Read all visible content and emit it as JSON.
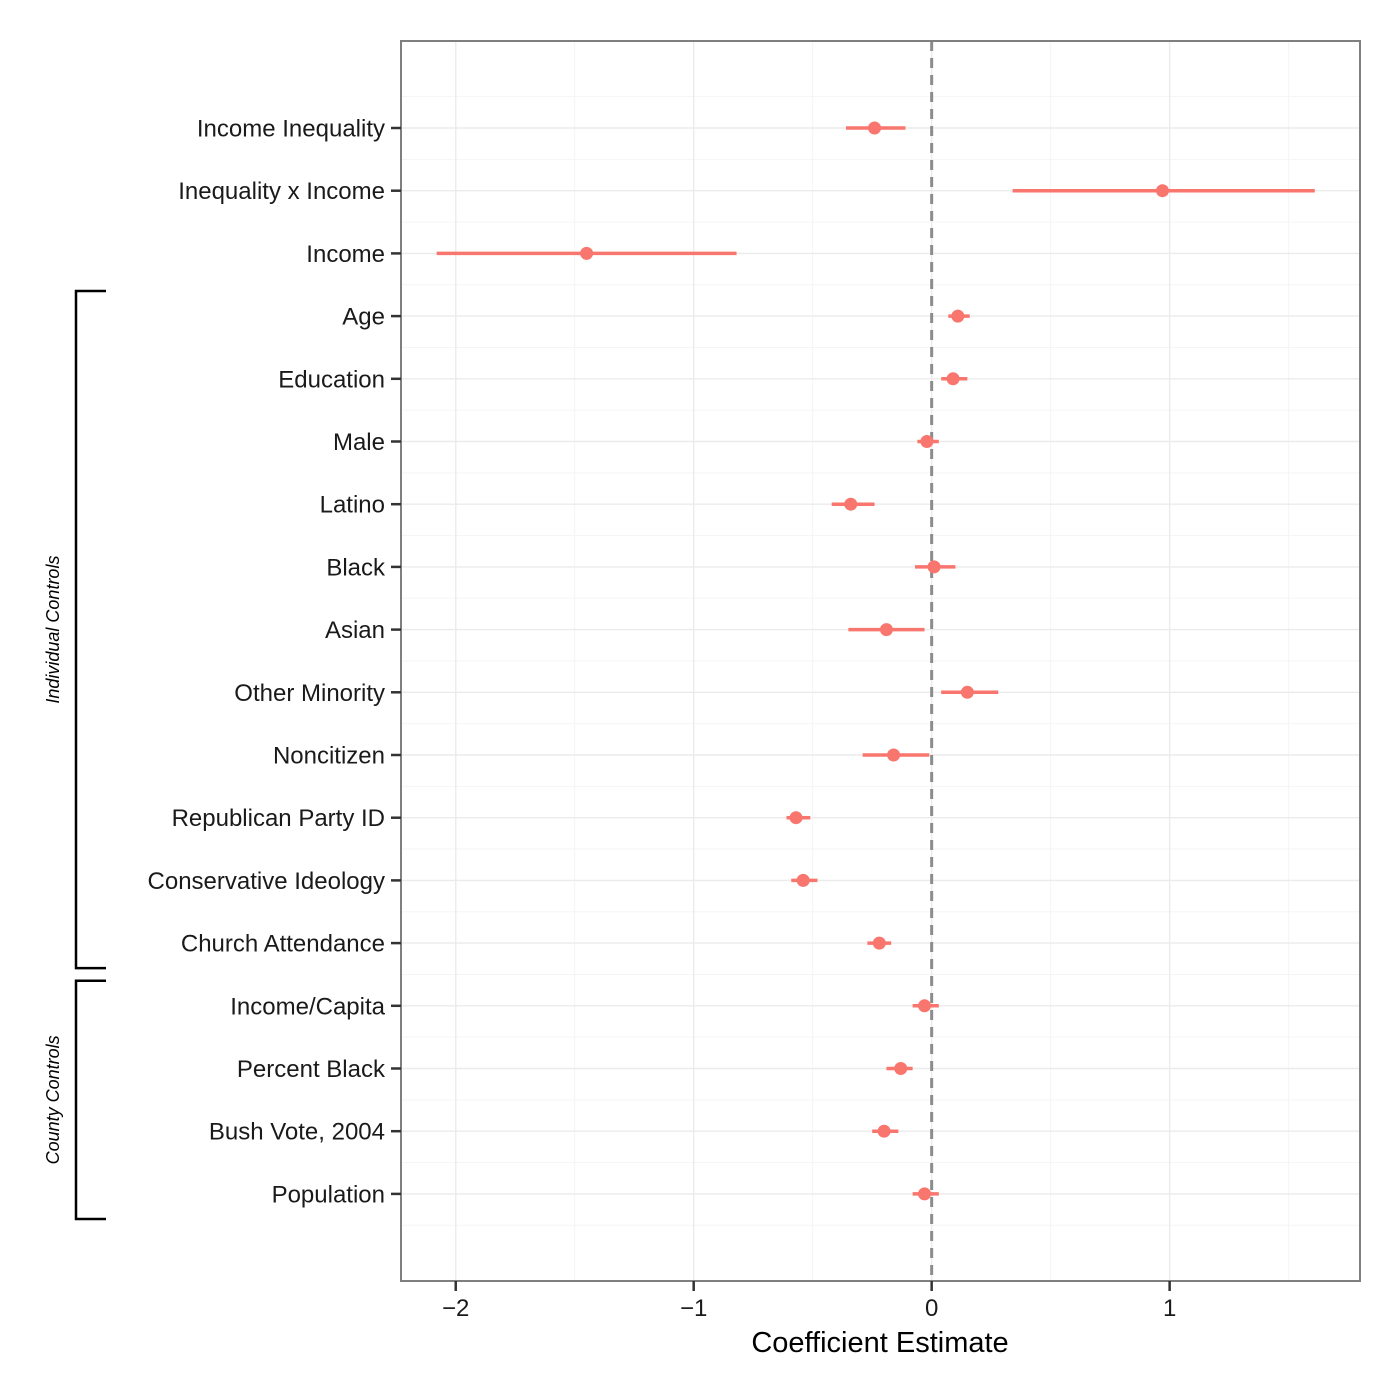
{
  "chart_data": {
    "type": "coefficient-plot",
    "xlabel": "Coefficient Estimate",
    "ylabel": "",
    "xlim": [
      -2.23,
      1.8
    ],
    "x_ticks": [
      -2,
      -1,
      0,
      1
    ],
    "x_tick_labels": [
      "−2",
      "−1",
      "0",
      "1"
    ],
    "reference_line": 0,
    "grid": true,
    "point_color": "#F8766D",
    "rows": [
      {
        "label": "Income Inequality",
        "estimate": -0.24,
        "lower": -0.36,
        "upper": -0.11
      },
      {
        "label": "Inequality x Income",
        "estimate": 0.97,
        "lower": 0.34,
        "upper": 1.61
      },
      {
        "label": "Income",
        "estimate": -1.45,
        "lower": -2.08,
        "upper": -0.82
      },
      {
        "label": "Age",
        "estimate": 0.11,
        "lower": 0.07,
        "upper": 0.16
      },
      {
        "label": "Education",
        "estimate": 0.09,
        "lower": 0.04,
        "upper": 0.15
      },
      {
        "label": "Male",
        "estimate": -0.02,
        "lower": -0.06,
        "upper": 0.03
      },
      {
        "label": "Latino",
        "estimate": -0.34,
        "lower": -0.42,
        "upper": -0.24
      },
      {
        "label": "Black",
        "estimate": 0.01,
        "lower": -0.07,
        "upper": 0.1
      },
      {
        "label": "Asian",
        "estimate": -0.19,
        "lower": -0.35,
        "upper": -0.03
      },
      {
        "label": "Other Minority",
        "estimate": 0.15,
        "lower": 0.04,
        "upper": 0.28
      },
      {
        "label": "Noncitizen",
        "estimate": -0.16,
        "lower": -0.29,
        "upper": -0.01
      },
      {
        "label": "Republican Party ID",
        "estimate": -0.57,
        "lower": -0.61,
        "upper": -0.51
      },
      {
        "label": "Conservative Ideology",
        "estimate": -0.54,
        "lower": -0.59,
        "upper": -0.48
      },
      {
        "label": "Church Attendance",
        "estimate": -0.22,
        "lower": -0.27,
        "upper": -0.17
      },
      {
        "label": "Income/Capita",
        "estimate": -0.03,
        "lower": -0.08,
        "upper": 0.03
      },
      {
        "label": "Percent Black",
        "estimate": -0.13,
        "lower": -0.19,
        "upper": -0.08
      },
      {
        "label": "Bush Vote, 2004",
        "estimate": -0.2,
        "lower": -0.25,
        "upper": -0.14
      },
      {
        "label": "Population",
        "estimate": -0.03,
        "lower": -0.08,
        "upper": 0.03
      }
    ],
    "groups": [
      {
        "label": "Individual Controls",
        "first_row": 3,
        "last_row": 13
      },
      {
        "label": "County Controls",
        "first_row": 14,
        "last_row": 17
      }
    ]
  }
}
